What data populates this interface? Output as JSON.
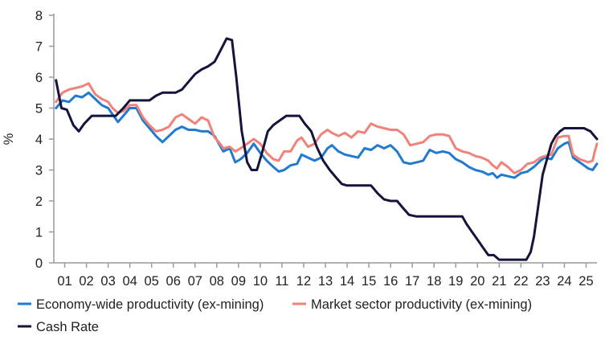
{
  "chart_data": {
    "type": "line",
    "title": "",
    "xlabel": "",
    "ylabel": "%",
    "ylim": [
      0,
      8
    ],
    "yticks": [
      "0",
      "1",
      "2",
      "3",
      "4",
      "5",
      "6",
      "7",
      "8"
    ],
    "xlim": [
      2000.5,
      2025.5
    ],
    "xticks": [
      "01",
      "02",
      "03",
      "04",
      "05",
      "06",
      "07",
      "08",
      "09",
      "10",
      "11",
      "12",
      "13",
      "14",
      "15",
      "16",
      "17",
      "18",
      "19",
      "20",
      "21",
      "22",
      "23",
      "24",
      "25"
    ],
    "grid": false,
    "legend_position": "bottom",
    "series": [
      {
        "name": "Economy-wide productivity (ex-mining)",
        "color": "#1f7ad0",
        "points": [
          [
            2000.6,
            5.0
          ],
          [
            2000.9,
            5.25
          ],
          [
            2001.2,
            5.2
          ],
          [
            2001.5,
            5.4
          ],
          [
            2001.8,
            5.35
          ],
          [
            2002.1,
            5.5
          ],
          [
            2002.4,
            5.3
          ],
          [
            2002.7,
            5.1
          ],
          [
            2003.0,
            5.0
          ],
          [
            2003.2,
            4.8
          ],
          [
            2003.45,
            4.55
          ],
          [
            2003.7,
            4.75
          ],
          [
            2004.0,
            5.0
          ],
          [
            2004.3,
            5.0
          ],
          [
            2004.6,
            4.6
          ],
          [
            2004.9,
            4.35
          ],
          [
            2005.2,
            4.1
          ],
          [
            2005.5,
            3.9
          ],
          [
            2005.8,
            4.1
          ],
          [
            2006.1,
            4.3
          ],
          [
            2006.4,
            4.4
          ],
          [
            2006.7,
            4.3
          ],
          [
            2007.0,
            4.3
          ],
          [
            2007.3,
            4.25
          ],
          [
            2007.6,
            4.25
          ],
          [
            2007.9,
            4.1
          ],
          [
            2008.1,
            3.85
          ],
          [
            2008.3,
            3.6
          ],
          [
            2008.6,
            3.7
          ],
          [
            2008.85,
            3.25
          ],
          [
            2009.1,
            3.35
          ],
          [
            2009.4,
            3.55
          ],
          [
            2009.7,
            3.85
          ],
          [
            2010.0,
            3.55
          ],
          [
            2010.3,
            3.3
          ],
          [
            2010.6,
            3.1
          ],
          [
            2010.85,
            2.95
          ],
          [
            2011.1,
            3.0
          ],
          [
            2011.4,
            3.15
          ],
          [
            2011.7,
            3.2
          ],
          [
            2011.9,
            3.5
          ],
          [
            2012.2,
            3.4
          ],
          [
            2012.5,
            3.3
          ],
          [
            2012.8,
            3.4
          ],
          [
            2013.1,
            3.7
          ],
          [
            2013.3,
            3.8
          ],
          [
            2013.6,
            3.6
          ],
          [
            2013.9,
            3.5
          ],
          [
            2014.2,
            3.45
          ],
          [
            2014.5,
            3.4
          ],
          [
            2014.8,
            3.7
          ],
          [
            2015.1,
            3.65
          ],
          [
            2015.4,
            3.8
          ],
          [
            2015.7,
            3.7
          ],
          [
            2016.0,
            3.8
          ],
          [
            2016.3,
            3.6
          ],
          [
            2016.6,
            3.25
          ],
          [
            2016.9,
            3.2
          ],
          [
            2017.2,
            3.25
          ],
          [
            2017.5,
            3.3
          ],
          [
            2017.8,
            3.65
          ],
          [
            2018.1,
            3.55
          ],
          [
            2018.4,
            3.6
          ],
          [
            2018.7,
            3.55
          ],
          [
            2019.0,
            3.35
          ],
          [
            2019.3,
            3.25
          ],
          [
            2019.6,
            3.1
          ],
          [
            2019.9,
            3.0
          ],
          [
            2020.2,
            2.95
          ],
          [
            2020.5,
            2.85
          ],
          [
            2020.7,
            2.9
          ],
          [
            2020.9,
            2.75
          ],
          [
            2021.1,
            2.85
          ],
          [
            2021.4,
            2.8
          ],
          [
            2021.7,
            2.75
          ],
          [
            2022.0,
            2.9
          ],
          [
            2022.3,
            2.95
          ],
          [
            2022.6,
            3.1
          ],
          [
            2022.9,
            3.3
          ],
          [
            2023.1,
            3.4
          ],
          [
            2023.4,
            3.35
          ],
          [
            2023.7,
            3.7
          ],
          [
            2024.0,
            3.85
          ],
          [
            2024.2,
            3.9
          ],
          [
            2024.4,
            3.4
          ],
          [
            2024.7,
            3.25
          ],
          [
            2024.9,
            3.15
          ],
          [
            2025.1,
            3.05
          ],
          [
            2025.3,
            3.0
          ],
          [
            2025.4,
            3.1
          ],
          [
            2025.5,
            3.2
          ]
        ]
      },
      {
        "name": "Market sector productivity (ex-mining)",
        "color": "#f0827a",
        "points": [
          [
            2000.6,
            5.2
          ],
          [
            2000.9,
            5.5
          ],
          [
            2001.2,
            5.6
          ],
          [
            2001.5,
            5.65
          ],
          [
            2001.8,
            5.7
          ],
          [
            2002.1,
            5.8
          ],
          [
            2002.4,
            5.45
          ],
          [
            2002.7,
            5.3
          ],
          [
            2003.0,
            5.2
          ],
          [
            2003.2,
            5.0
          ],
          [
            2003.45,
            4.85
          ],
          [
            2003.7,
            4.9
          ],
          [
            2004.0,
            5.1
          ],
          [
            2004.3,
            5.1
          ],
          [
            2004.6,
            4.7
          ],
          [
            2004.9,
            4.45
          ],
          [
            2005.2,
            4.25
          ],
          [
            2005.5,
            4.3
          ],
          [
            2005.8,
            4.4
          ],
          [
            2006.1,
            4.7
          ],
          [
            2006.4,
            4.8
          ],
          [
            2006.7,
            4.65
          ],
          [
            2007.0,
            4.5
          ],
          [
            2007.3,
            4.7
          ],
          [
            2007.6,
            4.6
          ],
          [
            2007.9,
            4.05
          ],
          [
            2008.1,
            3.9
          ],
          [
            2008.3,
            3.7
          ],
          [
            2008.6,
            3.75
          ],
          [
            2008.85,
            3.6
          ],
          [
            2009.1,
            3.7
          ],
          [
            2009.4,
            3.85
          ],
          [
            2009.7,
            4.0
          ],
          [
            2010.0,
            3.85
          ],
          [
            2010.3,
            3.55
          ],
          [
            2010.6,
            3.35
          ],
          [
            2010.85,
            3.3
          ],
          [
            2011.1,
            3.6
          ],
          [
            2011.4,
            3.6
          ],
          [
            2011.7,
            3.95
          ],
          [
            2011.9,
            4.05
          ],
          [
            2012.2,
            3.75
          ],
          [
            2012.5,
            3.85
          ],
          [
            2012.8,
            4.15
          ],
          [
            2013.1,
            4.3
          ],
          [
            2013.3,
            4.2
          ],
          [
            2013.6,
            4.1
          ],
          [
            2013.9,
            4.2
          ],
          [
            2014.2,
            4.05
          ],
          [
            2014.5,
            4.25
          ],
          [
            2014.8,
            4.2
          ],
          [
            2015.1,
            4.5
          ],
          [
            2015.4,
            4.4
          ],
          [
            2015.7,
            4.35
          ],
          [
            2016.0,
            4.3
          ],
          [
            2016.3,
            4.3
          ],
          [
            2016.6,
            4.15
          ],
          [
            2016.9,
            3.8
          ],
          [
            2017.2,
            3.85
          ],
          [
            2017.5,
            3.9
          ],
          [
            2017.8,
            4.1
          ],
          [
            2018.1,
            4.15
          ],
          [
            2018.4,
            4.15
          ],
          [
            2018.7,
            4.1
          ],
          [
            2019.0,
            3.7
          ],
          [
            2019.3,
            3.6
          ],
          [
            2019.6,
            3.55
          ],
          [
            2019.9,
            3.45
          ],
          [
            2020.2,
            3.4
          ],
          [
            2020.5,
            3.3
          ],
          [
            2020.7,
            3.15
          ],
          [
            2020.9,
            3.05
          ],
          [
            2021.1,
            3.25
          ],
          [
            2021.4,
            3.1
          ],
          [
            2021.7,
            2.9
          ],
          [
            2022.0,
            3.0
          ],
          [
            2022.3,
            3.2
          ],
          [
            2022.6,
            3.25
          ],
          [
            2022.9,
            3.4
          ],
          [
            2023.1,
            3.45
          ],
          [
            2023.4,
            3.5
          ],
          [
            2023.7,
            4.05
          ],
          [
            2024.0,
            4.1
          ],
          [
            2024.2,
            4.1
          ],
          [
            2024.4,
            3.5
          ],
          [
            2024.7,
            3.35
          ],
          [
            2024.9,
            3.3
          ],
          [
            2025.1,
            3.25
          ],
          [
            2025.3,
            3.3
          ],
          [
            2025.4,
            3.6
          ],
          [
            2025.5,
            3.85
          ]
        ]
      },
      {
        "name": "Cash Rate",
        "color": "#14143c",
        "points": [
          [
            2000.6,
            5.9
          ],
          [
            2000.85,
            5.0
          ],
          [
            2001.1,
            4.95
          ],
          [
            2001.4,
            4.45
          ],
          [
            2001.65,
            4.25
          ],
          [
            2001.9,
            4.5
          ],
          [
            2002.25,
            4.75
          ],
          [
            2002.6,
            4.75
          ],
          [
            2003.0,
            4.75
          ],
          [
            2003.35,
            4.75
          ],
          [
            2003.7,
            5.0
          ],
          [
            2004.0,
            5.25
          ],
          [
            2004.5,
            5.25
          ],
          [
            2004.9,
            5.25
          ],
          [
            2005.2,
            5.4
          ],
          [
            2005.5,
            5.5
          ],
          [
            2006.1,
            5.5
          ],
          [
            2006.4,
            5.6
          ],
          [
            2006.7,
            5.85
          ],
          [
            2007.0,
            6.1
          ],
          [
            2007.3,
            6.25
          ],
          [
            2007.6,
            6.35
          ],
          [
            2007.9,
            6.5
          ],
          [
            2008.2,
            6.9
          ],
          [
            2008.45,
            7.25
          ],
          [
            2008.7,
            7.2
          ],
          [
            2008.9,
            6.0
          ],
          [
            2009.15,
            4.25
          ],
          [
            2009.4,
            3.25
          ],
          [
            2009.6,
            3.0
          ],
          [
            2009.85,
            3.0
          ],
          [
            2010.1,
            3.6
          ],
          [
            2010.35,
            4.25
          ],
          [
            2010.6,
            4.45
          ],
          [
            2010.9,
            4.6
          ],
          [
            2011.2,
            4.75
          ],
          [
            2011.5,
            4.75
          ],
          [
            2011.8,
            4.75
          ],
          [
            2012.05,
            4.5
          ],
          [
            2012.35,
            4.25
          ],
          [
            2012.6,
            3.75
          ],
          [
            2012.9,
            3.3
          ],
          [
            2013.2,
            3.0
          ],
          [
            2013.5,
            2.75
          ],
          [
            2013.75,
            2.55
          ],
          [
            2014.0,
            2.5
          ],
          [
            2014.5,
            2.5
          ],
          [
            2015.1,
            2.5
          ],
          [
            2015.4,
            2.25
          ],
          [
            2015.7,
            2.05
          ],
          [
            2016.0,
            2.0
          ],
          [
            2016.3,
            2.0
          ],
          [
            2016.6,
            1.75
          ],
          [
            2016.85,
            1.55
          ],
          [
            2017.2,
            1.5
          ],
          [
            2017.6,
            1.5
          ],
          [
            2018.0,
            1.5
          ],
          [
            2018.5,
            1.5
          ],
          [
            2019.0,
            1.5
          ],
          [
            2019.3,
            1.5
          ],
          [
            2019.5,
            1.25
          ],
          [
            2019.75,
            1.0
          ],
          [
            2020.0,
            0.75
          ],
          [
            2020.25,
            0.5
          ],
          [
            2020.5,
            0.25
          ],
          [
            2020.75,
            0.25
          ],
          [
            2021.0,
            0.1
          ],
          [
            2021.5,
            0.1
          ],
          [
            2022.0,
            0.1
          ],
          [
            2022.25,
            0.1
          ],
          [
            2022.45,
            0.35
          ],
          [
            2022.6,
            0.85
          ],
          [
            2022.8,
            1.85
          ],
          [
            2023.0,
            2.85
          ],
          [
            2023.2,
            3.35
          ],
          [
            2023.4,
            3.85
          ],
          [
            2023.6,
            4.1
          ],
          [
            2023.8,
            4.25
          ],
          [
            2024.0,
            4.35
          ],
          [
            2024.5,
            4.35
          ],
          [
            2024.9,
            4.35
          ],
          [
            2025.2,
            4.25
          ],
          [
            2025.5,
            4.0
          ]
        ]
      }
    ]
  }
}
